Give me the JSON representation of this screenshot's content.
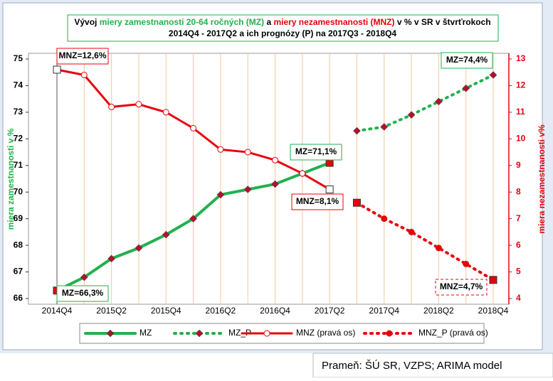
{
  "chart_data": {
    "type": "line",
    "title": [
      "Vývoj ",
      "miery zamestnanosti 20-64 ročných (MZ)",
      " a ",
      "miery nezamestnanosti (MNZ)",
      " v % v SR v štvrťrokoch"
    ],
    "subtitle": "2014Q4 - 2017Q2 a ich prognózy (P) na 2017Q3 - 2018Q4",
    "categories": [
      "2014Q4",
      null,
      "2015Q2",
      null,
      "2015Q4",
      null,
      "2016Q2",
      null,
      "2016Q4",
      null,
      "2017Q2",
      null,
      "2017Q4",
      null,
      "2018Q2",
      null,
      "2018Q4"
    ],
    "series": [
      {
        "name": "MZ",
        "color": "#22b14c",
        "values": [
          66.3,
          66.8,
          67.5,
          67.9,
          68.4,
          69.0,
          69.9,
          70.1,
          70.3,
          70.7,
          71.1,
          null,
          null,
          null,
          null,
          null,
          null
        ]
      },
      {
        "name": "MZ_P",
        "color": "#22b14c",
        "values": [
          null,
          null,
          null,
          null,
          null,
          null,
          null,
          null,
          null,
          null,
          null,
          72.3,
          72.45,
          72.9,
          73.4,
          73.9,
          74.4
        ]
      },
      {
        "name": "MNZ (pravá os)",
        "color": "#e8000b",
        "axis": "y2",
        "values": [
          12.6,
          12.4,
          11.2,
          11.3,
          11.0,
          10.4,
          9.6,
          9.5,
          9.2,
          8.7,
          8.1,
          null,
          null,
          null,
          null,
          null,
          null
        ]
      },
      {
        "name": "MNZ_P (pravá os)",
        "color": "#e8000b",
        "axis": "y2",
        "values": [
          null,
          null,
          null,
          null,
          null,
          null,
          null,
          null,
          null,
          null,
          null,
          7.6,
          7.0,
          6.5,
          5.9,
          5.3,
          4.7
        ]
      }
    ],
    "ylim": [
      66,
      75
    ],
    "yticks": [
      66,
      67,
      68,
      69,
      70,
      71,
      72,
      73,
      74,
      75
    ],
    "y2lim": [
      4,
      13
    ],
    "y2ticks": [
      4,
      5,
      6,
      7,
      8,
      9,
      10,
      11,
      12,
      13
    ],
    "ylabel": "miera zamestnanosti v %",
    "y2label": "miera nezamestnanosti v%",
    "annotations": [
      "MNZ=12,6%",
      "MZ=66,3%",
      "MZ=71,1%",
      "MNZ=8,1%",
      "MZ=74,4%",
      "MNZ=4,7%"
    ],
    "grid": "x",
    "source": "Prameň: ŠÚ SR, VZPS; ARIMA model"
  }
}
